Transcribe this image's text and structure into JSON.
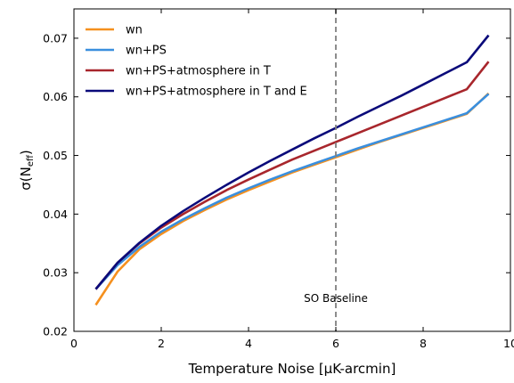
{
  "chart_data": {
    "type": "line",
    "xlabel": "Temperature Noise [μK-arcmin]",
    "ylabel": "σ(N_eff)",
    "ylabel_main": "σ(N",
    "ylabel_sub": "eff",
    "ylabel_close": ")",
    "xlim": [
      0,
      10
    ],
    "ylim": [
      0.02,
      0.075
    ],
    "xticks": [
      0,
      2,
      4,
      6,
      8,
      10
    ],
    "xtick_labels": [
      "0",
      "2",
      "4",
      "6",
      "8",
      "10"
    ],
    "yticks": [
      0.02,
      0.03,
      0.04,
      0.05,
      0.06,
      0.07
    ],
    "ytick_labels": [
      "0.02",
      "0.03",
      "0.04",
      "0.05",
      "0.06",
      "0.07"
    ],
    "legend_position": "top-left",
    "annotation": {
      "x": 6,
      "label": "SO Baseline",
      "line_color": "#808080"
    },
    "x": [
      0.5,
      1.0,
      1.5,
      2.0,
      2.5,
      3.0,
      3.5,
      4.0,
      4.5,
      5.0,
      5.5,
      6.0,
      6.5,
      7.0,
      7.5,
      8.0,
      8.5,
      9.0,
      9.5
    ],
    "series": [
      {
        "name": "wn",
        "color": "#f5901e",
        "values": [
          0.0245,
          0.0302,
          0.034,
          0.0366,
          0.0388,
          0.0407,
          0.0425,
          0.0441,
          0.0456,
          0.0471,
          0.0484,
          0.0497,
          0.051,
          0.0523,
          0.0535,
          0.0547,
          0.0559,
          0.0571,
          0.0606
        ]
      },
      {
        "name": "wn+PS",
        "color": "#3a8fde",
        "values": [
          0.0272,
          0.0313,
          0.0344,
          0.037,
          0.0391,
          0.041,
          0.0428,
          0.0444,
          0.0459,
          0.0473,
          0.0486,
          0.0499,
          0.0512,
          0.0524,
          0.0536,
          0.0548,
          0.056,
          0.0572,
          0.0605
        ]
      },
      {
        "name": "wn+PS+atmosphere in T",
        "color": "#a8262c",
        "values": [
          0.0272,
          0.0317,
          0.035,
          0.0377,
          0.04,
          0.0421,
          0.0441,
          0.0459,
          0.0476,
          0.0493,
          0.0508,
          0.0523,
          0.0538,
          0.0553,
          0.0568,
          0.0583,
          0.0598,
          0.0613,
          0.066
        ]
      },
      {
        "name": "wn+PS+atmosphere in T and E",
        "color": "#0a0a7a",
        "values": [
          0.0272,
          0.0317,
          0.0351,
          0.038,
          0.0405,
          0.0428,
          0.045,
          0.0471,
          0.0491,
          0.051,
          0.0529,
          0.0547,
          0.0566,
          0.0584,
          0.0602,
          0.0621,
          0.064,
          0.0659,
          0.0705
        ]
      }
    ]
  }
}
